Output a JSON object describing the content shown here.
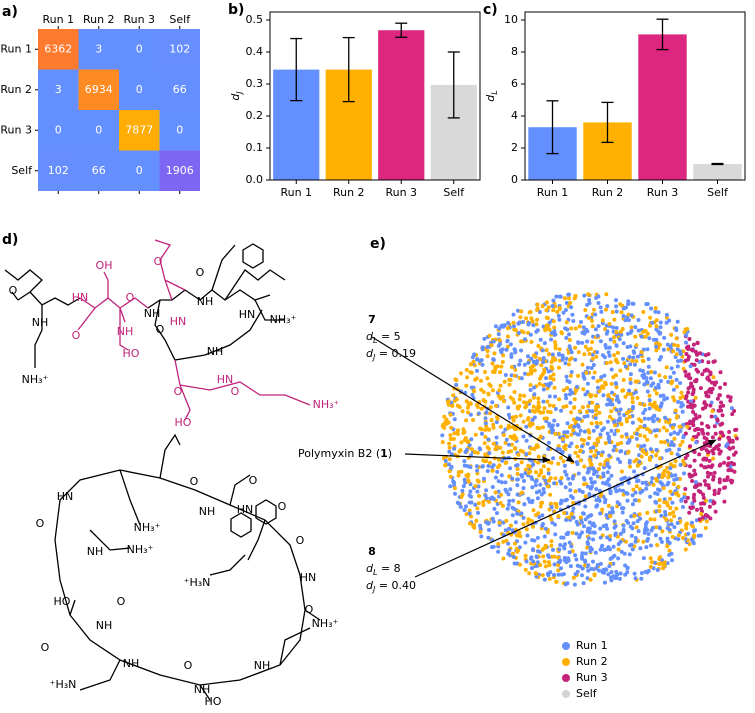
{
  "chart_data": [
    {
      "type": "heatmap",
      "label": "a)",
      "x_categories": [
        "Run 1",
        "Run 2",
        "Run 3",
        "Self"
      ],
      "y_categories": [
        "Run 1",
        "Run 2",
        "Run 3",
        "Self"
      ],
      "values": [
        [
          6362,
          3,
          0,
          102
        ],
        [
          3,
          6934,
          0,
          66
        ],
        [
          0,
          0,
          7877,
          0
        ],
        [
          102,
          66,
          0,
          1906
        ]
      ],
      "colors": [
        [
          "#fe7a2e",
          "#648fff",
          "#648fff",
          "#668eff"
        ],
        [
          "#648fff",
          "#fe8a22",
          "#648fff",
          "#658fff"
        ],
        [
          "#648fff",
          "#648fff",
          "#ffad05",
          "#648fff"
        ],
        [
          "#668eff",
          "#658fff",
          "#648fff",
          "#7d66f2"
        ]
      ]
    },
    {
      "type": "bar",
      "label": "b)",
      "ylabel": {
        "text": "d",
        "sub": "J"
      },
      "categories": [
        "Run 1",
        "Run 2",
        "Run 3",
        "Self"
      ],
      "values": [
        0.345,
        0.345,
        0.468,
        0.297
      ],
      "errors": [
        0.097,
        0.1,
        0.022,
        0.103
      ],
      "colors": [
        "#648fff",
        "#ffb000",
        "#dc267f",
        "#d9d9d9"
      ],
      "ylim": [
        0,
        0.525
      ],
      "yticks": [
        {
          "value": 0,
          "label": "0.0"
        },
        0.1,
        0.2,
        0.3,
        0.4,
        0.5
      ]
    },
    {
      "type": "bar",
      "label": "c)",
      "ylabel": {
        "text": "d",
        "sub": "L"
      },
      "categories": [
        "Run 1",
        "Run 2",
        "Run 3",
        "Self"
      ],
      "values": [
        3.3,
        3.6,
        9.1,
        1.0
      ],
      "errors": [
        1.65,
        1.25,
        0.95,
        0.03
      ],
      "colors": [
        "#648fff",
        "#ffb000",
        "#dc267f",
        "#d9d9d9"
      ],
      "ylim": [
        0,
        10.5
      ],
      "yticks": [
        0,
        2,
        4,
        6,
        8,
        10
      ]
    }
  ],
  "panel_d": {
    "label": "d)",
    "top": [
      "O",
      "NH",
      "NH₃⁺",
      "HN",
      "O",
      "OH",
      "O",
      "NH",
      "HO",
      "NH",
      "O",
      "HN",
      "O",
      "NH",
      "O",
      "HN",
      "NH₃⁺",
      "NH",
      "O",
      "HN",
      "O",
      "HO",
      "NH₃⁺"
    ],
    "bottom": [
      "O",
      "NH",
      "O",
      "HN",
      "O",
      "HN",
      "O",
      "NH₃⁺",
      "NH₃⁺",
      "NH",
      "O",
      "HN",
      "⁺H₃N",
      "HO",
      "O",
      "NH",
      "NH₃⁺",
      "O",
      "NH",
      "O",
      "NH",
      "NH",
      "⁺H₃N",
      "HO",
      "O"
    ]
  },
  "panel_e": {
    "label": "e)",
    "annotations": [
      {
        "id": "7",
        "lines": [
          {
            "text": "d",
            "sub": "L",
            "rest": " = 5"
          },
          {
            "text": "d",
            "sub": "J",
            "rest": " = 0.19"
          }
        ]
      },
      {
        "id": "8",
        "lines": [
          {
            "text": "d",
            "sub": "L",
            "rest": " = 8"
          },
          {
            "text": "d",
            "sub": "J",
            "rest": " = 0.40"
          }
        ]
      }
    ],
    "polymyxin": {
      "text": "Polymyxin B2 (",
      "bold": "1",
      "end": ")"
    },
    "legend": [
      {
        "name": "Run 1",
        "color": "#648fff"
      },
      {
        "name": "Run 2",
        "color": "#ffb000"
      },
      {
        "name": "Run 3",
        "color": "#c5237a"
      },
      {
        "name": "Self",
        "color": "#d4d4d4"
      }
    ]
  }
}
